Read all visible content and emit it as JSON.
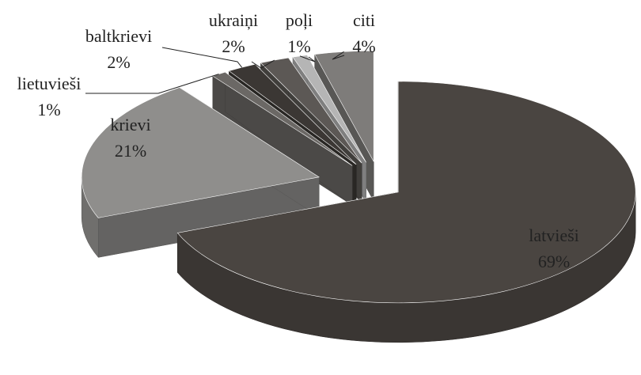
{
  "chart_data": {
    "type": "pie",
    "categories": [
      "latvieši",
      "krievi",
      "lietuvieši",
      "baltkrievi",
      "ukraiņi",
      "poļi",
      "citi"
    ],
    "values": [
      69,
      21,
      1,
      2,
      2,
      1,
      4
    ],
    "value_labels": [
      "69%",
      "21%",
      "1%",
      "2%",
      "2%",
      "1%",
      "4%"
    ],
    "colors": [
      "#4a4541",
      "#8f8e8c",
      "#6b6865",
      "#3b3734",
      "#5c5855",
      "#b5b5b5",
      "#7e7c7a"
    ]
  }
}
